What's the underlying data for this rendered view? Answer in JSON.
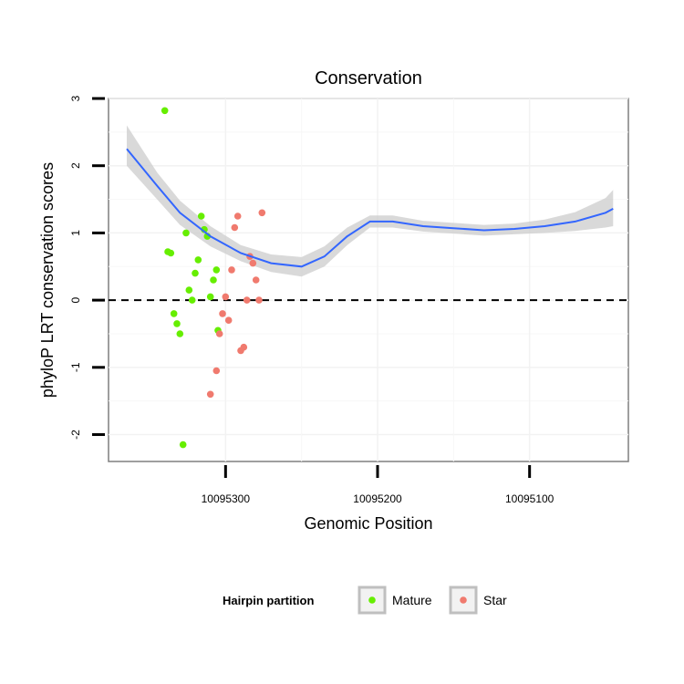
{
  "chart_data": {
    "type": "scatter",
    "title": "Conservation",
    "xlabel": "Genomic Position",
    "ylabel": "phyloP LRT conservation scores",
    "x_reversed": true,
    "xlim": [
      10095035,
      10095377
    ],
    "ylim": [
      -2.4,
      3.0
    ],
    "x_ticks": [
      10095300,
      10095200,
      10095100
    ],
    "x_tick_labels": [
      "10095300",
      "10095200",
      "10095100"
    ],
    "y_ticks": [
      -2,
      -1,
      0,
      1,
      2,
      3
    ],
    "y_tick_labels": [
      "-2",
      "-1",
      "0",
      "1",
      "2",
      "3"
    ],
    "reference_line": {
      "y": 0,
      "style": "dashed"
    },
    "grid": true,
    "legend": {
      "title": "Hairpin partition",
      "placement": "bottom",
      "entries": [
        {
          "label": "Mature",
          "color": "#66ee00"
        },
        {
          "label": "Star",
          "color": "#f07a6e"
        }
      ]
    },
    "colors": {
      "other": "#999999",
      "Mature": "#66ee00",
      "Star": "#f07a6e",
      "smooth": "#3366ff",
      "band": "#cccccc"
    },
    "smooth": {
      "x": [
        10095365,
        10095345,
        10095330,
        10095310,
        10095290,
        10095270,
        10095250,
        10095235,
        10095220,
        10095205,
        10095190,
        10095170,
        10095150,
        10095130,
        10095110,
        10095090,
        10095070,
        10095050,
        10095045
      ],
      "y": [
        2.25,
        1.7,
        1.3,
        0.95,
        0.7,
        0.55,
        0.5,
        0.65,
        0.95,
        1.17,
        1.17,
        1.1,
        1.07,
        1.04,
        1.06,
        1.1,
        1.17,
        1.3,
        1.36
      ],
      "lower": [
        2.0,
        1.5,
        1.12,
        0.8,
        0.58,
        0.42,
        0.35,
        0.5,
        0.82,
        1.08,
        1.08,
        1.02,
        0.99,
        0.96,
        0.98,
        1.0,
        1.03,
        1.08,
        1.1
      ],
      "upper": [
        2.6,
        1.9,
        1.48,
        1.1,
        0.82,
        0.68,
        0.64,
        0.8,
        1.08,
        1.26,
        1.26,
        1.18,
        1.15,
        1.12,
        1.14,
        1.2,
        1.31,
        1.52,
        1.64
      ]
    },
    "series": [
      {
        "name": "Mature",
        "x": [
          10095340,
          10095338,
          10095336,
          10095334,
          10095332,
          10095330,
          10095328,
          10095326,
          10095324,
          10095322,
          10095320,
          10095318,
          10095316,
          10095314,
          10095312,
          10095310,
          10095308,
          10095306,
          10095305
        ],
        "y": [
          2.82,
          0.72,
          0.7,
          -0.2,
          -0.35,
          -0.5,
          -2.15,
          1.0,
          0.15,
          0.0,
          0.4,
          0.6,
          1.25,
          1.05,
          0.95,
          0.05,
          0.3,
          0.45,
          -0.45
        ]
      },
      {
        "name": "Star",
        "x": [
          10095310,
          10095306,
          10095304,
          10095302,
          10095300,
          10095298,
          10095296,
          10095294,
          10095292,
          10095290,
          10095288,
          10095286,
          10095284,
          10095282,
          10095280,
          10095278,
          10095276
        ],
        "y": [
          -1.4,
          -1.05,
          -0.5,
          -0.2,
          0.05,
          -0.3,
          0.45,
          1.08,
          1.25,
          -0.75,
          -0.7,
          0.0,
          0.65,
          0.55,
          0.3,
          0.0,
          1.3
        ]
      },
      {
        "name": "",
        "x": [],
        "y": []
      }
    ]
  }
}
